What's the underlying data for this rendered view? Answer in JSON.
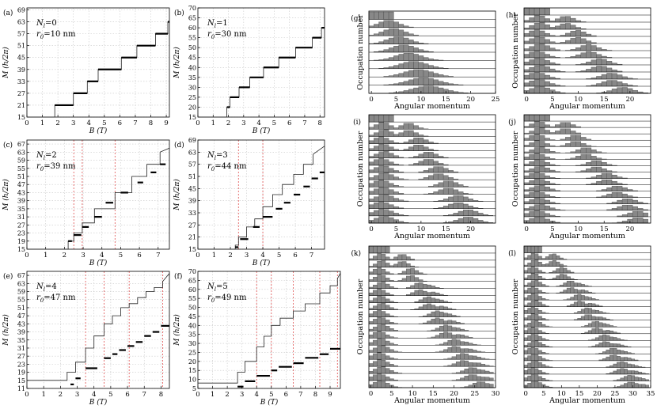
{
  "chart_data": [
    {
      "type": "line",
      "panel": "(a)",
      "annotation": [
        "N",
        "l",
        "=0",
        "r",
        "0",
        "=10 nm"
      ],
      "xlabel": "B (T)",
      "ylabel": "M (h/2π)",
      "xlim": [
        0,
        9.2
      ],
      "ylim": [
        15,
        70
      ],
      "xticks": [
        0,
        1,
        2,
        3,
        4,
        5,
        6,
        7,
        8,
        9
      ],
      "yticks": [
        15,
        21,
        27,
        33,
        39,
        45,
        51,
        57,
        63,
        69
      ],
      "grid": true,
      "series": [
        {
          "style": "thin",
          "x": [
            0,
            1.8,
            1.8,
            3.0,
            3.0,
            3.9,
            3.9,
            4.6,
            4.6,
            6.1,
            6.1,
            7.1,
            7.1,
            8.3,
            8.3,
            9.1,
            9.1,
            9.2
          ],
          "y": [
            15,
            15,
            21,
            21,
            27,
            27,
            33,
            33,
            39,
            39,
            45,
            45,
            51,
            51,
            57,
            57,
            63,
            63
          ]
        },
        {
          "style": "thick",
          "segments": [
            [
              1.8,
              3.0,
              21
            ],
            [
              3.0,
              3.9,
              27
            ],
            [
              3.9,
              4.6,
              33
            ],
            [
              4.6,
              6.1,
              39
            ],
            [
              6.1,
              7.1,
              45
            ],
            [
              7.1,
              8.3,
              51
            ],
            [
              8.3,
              9.1,
              57
            ],
            [
              9.1,
              9.2,
              63
            ]
          ]
        }
      ]
    },
    {
      "type": "line",
      "panel": "(b)",
      "annotation": [
        "N",
        "l",
        "=1",
        "r",
        "0",
        "=30 nm"
      ],
      "xlabel": "B (T)",
      "ylabel": "M (h/2π)",
      "xlim": [
        0,
        8.3
      ],
      "ylim": [
        15,
        70
      ],
      "xticks": [
        0,
        1,
        2,
        3,
        4,
        5,
        6,
        7,
        8
      ],
      "yticks": [
        15,
        20,
        25,
        30,
        35,
        40,
        45,
        50,
        55,
        60,
        65,
        70
      ],
      "grid": true,
      "series": [
        {
          "style": "thin",
          "x": [
            0,
            1.9,
            1.9,
            2.1,
            2.1,
            2.7,
            2.7,
            3.4,
            3.4,
            4.3,
            4.3,
            5.3,
            5.3,
            6.4,
            6.4,
            7.5,
            7.5,
            8.1,
            8.1,
            8.3
          ],
          "y": [
            15,
            15,
            20,
            20,
            25,
            25,
            30,
            30,
            35,
            35,
            40,
            40,
            45,
            45,
            50,
            50,
            55,
            55,
            60,
            60
          ]
        },
        {
          "style": "thick",
          "segments": [
            [
              1.9,
              2.1,
              20
            ],
            [
              2.1,
              2.7,
              25
            ],
            [
              2.7,
              3.4,
              30
            ],
            [
              3.4,
              4.3,
              35
            ],
            [
              4.3,
              5.3,
              40
            ],
            [
              5.3,
              6.4,
              45
            ],
            [
              6.4,
              7.5,
              50
            ],
            [
              7.5,
              8.1,
              55
            ],
            [
              8.1,
              8.3,
              60
            ]
          ]
        }
      ]
    },
    {
      "type": "line",
      "panel": "(c)",
      "annotation": [
        "N",
        "l",
        "=2",
        "r",
        "0",
        "=39 nm"
      ],
      "xlabel": "B (T)",
      "ylabel": "M (h/2π)",
      "xlim": [
        0,
        7.6
      ],
      "ylim": [
        15,
        69
      ],
      "xticks": [
        0,
        1,
        2,
        3,
        4,
        5,
        6,
        7
      ],
      "yticks": [
        15,
        19,
        23,
        27,
        31,
        35,
        39,
        43,
        47,
        51,
        55,
        59,
        63,
        67
      ],
      "grid": true,
      "vlines": [
        2.5,
        2.95,
        4.7
      ],
      "series": [
        {
          "style": "thin",
          "x": [
            0,
            2.2,
            2.2,
            2.5,
            2.5,
            2.95,
            2.95,
            3.6,
            3.6,
            4.7,
            4.7,
            5.6,
            5.6,
            6.4,
            6.4,
            7.1,
            7.1,
            7.6
          ],
          "y": [
            15,
            15,
            19,
            19,
            23,
            23,
            28,
            28,
            35,
            35,
            43,
            43,
            51,
            51,
            57,
            57,
            63,
            65
          ]
        },
        {
          "style": "thick",
          "segments": [
            [
              2.2,
              2.4,
              19
            ],
            [
              2.5,
              2.9,
              22
            ],
            [
              2.95,
              3.3,
              26
            ],
            [
              3.6,
              4.0,
              31
            ],
            [
              4.2,
              4.6,
              38
            ],
            [
              5.0,
              5.4,
              43
            ],
            [
              5.9,
              6.2,
              48
            ],
            [
              6.6,
              6.9,
              53
            ],
            [
              7.1,
              7.4,
              57
            ]
          ]
        }
      ]
    },
    {
      "type": "line",
      "panel": "(d)",
      "annotation": [
        "N",
        "l",
        "=3",
        "r",
        "0",
        "=44 nm"
      ],
      "xlabel": "B (T)",
      "ylabel": "M (h/2π)",
      "xlim": [
        0,
        7.8
      ],
      "ylim": [
        15,
        69
      ],
      "xticks": [
        0,
        1,
        2,
        3,
        4,
        5,
        6,
        7
      ],
      "yticks": [
        15,
        21,
        27,
        33,
        39,
        45,
        51,
        57,
        63,
        69
      ],
      "grid": true,
      "vlines": [
        2.5,
        4.0
      ],
      "series": [
        {
          "style": "thin",
          "x": [
            0,
            2.3,
            2.3,
            2.5,
            2.5,
            3.0,
            3.0,
            3.5,
            3.5,
            4.0,
            4.0,
            4.6,
            4.6,
            5.2,
            5.2,
            5.9,
            5.9,
            6.5,
            6.5,
            7.1,
            7.1,
            7.8
          ],
          "y": [
            15,
            15,
            17,
            17,
            21,
            21,
            26,
            26,
            30,
            30,
            36,
            36,
            42,
            42,
            47,
            47,
            52,
            52,
            57,
            57,
            62,
            66
          ]
        },
        {
          "style": "thick",
          "segments": [
            [
              2.3,
              2.5,
              16
            ],
            [
              2.6,
              3.1,
              20
            ],
            [
              3.4,
              3.8,
              26
            ],
            [
              4.0,
              4.6,
              31
            ],
            [
              4.8,
              5.2,
              35
            ],
            [
              5.3,
              5.7,
              38
            ],
            [
              5.9,
              6.3,
              42
            ],
            [
              6.5,
              6.9,
              46
            ],
            [
              7.0,
              7.4,
              50
            ],
            [
              7.5,
              7.8,
              53
            ]
          ]
        }
      ]
    },
    {
      "type": "line",
      "panel": "(e)",
      "annotation": [
        "N",
        "l",
        "=4",
        "r",
        "0",
        "=47 nm"
      ],
      "xlabel": "B (T)",
      "ylabel": "M (h/2π)",
      "xlim": [
        0,
        8.5
      ],
      "ylim": [
        11,
        69
      ],
      "xticks": [
        0,
        1,
        2,
        3,
        4,
        5,
        6,
        7,
        8
      ],
      "yticks": [
        11,
        15,
        19,
        23,
        27,
        31,
        35,
        39,
        43,
        47,
        51,
        55,
        59,
        63,
        67
      ],
      "grid": true,
      "vlines": [
        3.5,
        4.6,
        6.1,
        8.1
      ],
      "series": [
        {
          "style": "thin",
          "x": [
            0,
            2.4,
            2.4,
            2.9,
            2.9,
            3.5,
            3.5,
            4.0,
            4.0,
            4.6,
            4.6,
            5.1,
            5.1,
            5.6,
            5.6,
            6.1,
            6.1,
            6.6,
            6.6,
            7.1,
            7.1,
            7.6,
            7.6,
            8.1,
            8.1,
            8.5
          ],
          "y": [
            15,
            15,
            19,
            19,
            24,
            24,
            31,
            31,
            37,
            37,
            43,
            43,
            47,
            47,
            51,
            51,
            53,
            53,
            56,
            56,
            59,
            59,
            61,
            61,
            64,
            68
          ]
        },
        {
          "style": "thick",
          "segments": [
            [
              2.6,
              2.8,
              13
            ],
            [
              2.9,
              3.2,
              16
            ],
            [
              3.5,
              4.2,
              21
            ],
            [
              4.6,
              5.0,
              26
            ],
            [
              5.1,
              5.4,
              28
            ],
            [
              5.5,
              5.9,
              30
            ],
            [
              6.0,
              6.4,
              32
            ],
            [
              6.5,
              6.9,
              34
            ],
            [
              7.0,
              7.4,
              37
            ],
            [
              7.5,
              7.9,
              39
            ],
            [
              8.0,
              8.5,
              42
            ]
          ]
        }
      ]
    },
    {
      "type": "line",
      "panel": "(f)",
      "annotation": [
        "N",
        "l",
        "=5",
        "r",
        "0",
        "=49 nm"
      ],
      "xlabel": "B (T)",
      "ylabel": "M (h/2π)",
      "xlim": [
        0,
        9.7
      ],
      "ylim": [
        5,
        70
      ],
      "xticks": [
        0,
        1,
        2,
        3,
        4,
        5,
        6,
        7,
        8,
        9
      ],
      "yticks": [
        5,
        10,
        15,
        20,
        25,
        30,
        35,
        40,
        45,
        50,
        55,
        60,
        65,
        70
      ],
      "grid": true,
      "vlines": [
        4.0,
        5.0,
        6.5,
        8.3,
        9.5
      ],
      "series": [
        {
          "style": "thin",
          "x": [
            0,
            2.7,
            2.7,
            3.2,
            3.2,
            4.0,
            4.0,
            4.5,
            4.5,
            5.0,
            5.0,
            5.6,
            5.6,
            6.5,
            6.5,
            7.3,
            7.3,
            8.3,
            8.3,
            9.0,
            9.0,
            9.5,
            9.5,
            9.7
          ],
          "y": [
            8,
            8,
            14,
            14,
            20,
            20,
            28,
            28,
            34,
            34,
            40,
            40,
            44,
            44,
            48,
            48,
            52,
            52,
            58,
            58,
            62,
            62,
            66,
            69
          ]
        },
        {
          "style": "thick",
          "segments": [
            [
              2.7,
              3.1,
              6
            ],
            [
              3.2,
              3.9,
              9
            ],
            [
              4.0,
              4.9,
              12
            ],
            [
              5.0,
              5.4,
              15
            ],
            [
              5.5,
              6.4,
              17
            ],
            [
              6.5,
              7.2,
              19
            ],
            [
              7.3,
              8.2,
              22
            ],
            [
              8.3,
              8.9,
              24
            ],
            [
              9.0,
              9.7,
              27
            ]
          ]
        }
      ]
    },
    {
      "type": "bar",
      "panel": "(g)",
      "xlabel": "Angular momentum",
      "ylabel": "Occupation number",
      "xlim": [
        -0.5,
        25
      ],
      "xticks": [
        0,
        5,
        10,
        15,
        20,
        25
      ],
      "rows": 10,
      "profile": {
        "shift": 1.0,
        "spread": 2.6,
        "growth": 0.22,
        "height": 0.9
      },
      "cut_off": 5
    },
    {
      "type": "bar",
      "panel": "(h)",
      "xlabel": "Angular momentum",
      "ylabel": "Occupation number",
      "xlim": [
        -0.5,
        24
      ],
      "xticks": [
        0,
        5,
        10,
        15,
        20
      ],
      "rows": 12,
      "profile": {
        "shift": 1.1,
        "spread": 2.0,
        "growth": 0.08,
        "height": 0.95,
        "edge": 1
      },
      "cut_off": 5
    },
    {
      "type": "bar",
      "panel": "(i)",
      "xlabel": "Angular momentum",
      "ylabel": "Occupation number",
      "xlim": [
        -0.5,
        25
      ],
      "xticks": [
        0,
        5,
        10,
        15,
        20
      ],
      "rows": 15,
      "profile": {
        "shift": 1.0,
        "spread": 2.0,
        "growth": 0.06,
        "height": 0.95,
        "edge": 2
      },
      "cut_off": 5
    },
    {
      "type": "bar",
      "panel": "(j)",
      "xlabel": "Angular momentum",
      "ylabel": "Occupation number",
      "xlim": [
        -0.5,
        24
      ],
      "xticks": [
        0,
        5,
        10,
        15,
        20
      ],
      "rows": 17,
      "profile": {
        "shift": 1.0,
        "spread": 1.8,
        "growth": 0.05,
        "height": 0.95,
        "edge": 3
      },
      "cut_off": 5
    },
    {
      "type": "bar",
      "panel": "(k)",
      "xlabel": "Angular momentum",
      "ylabel": "Occupation number",
      "xlim": [
        -0.5,
        30
      ],
      "xticks": [
        0,
        5,
        10,
        15,
        20,
        25,
        30
      ],
      "rows": 20,
      "profile": {
        "shift": 1.05,
        "spread": 1.9,
        "growth": 0.04,
        "height": 0.95,
        "edge": 4
      },
      "cut_off": 5
    },
    {
      "type": "bar",
      "panel": "(l)",
      "xlabel": "Angular momentum",
      "ylabel": "Occupation number",
      "xlim": [
        -0.5,
        35
      ],
      "xticks": [
        0,
        5,
        10,
        15,
        20,
        25,
        30,
        35
      ],
      "rows": 21,
      "profile": {
        "shift": 1.2,
        "spread": 2.0,
        "growth": 0.04,
        "height": 0.95,
        "edge": 5
      },
      "cut_off": 5
    }
  ]
}
